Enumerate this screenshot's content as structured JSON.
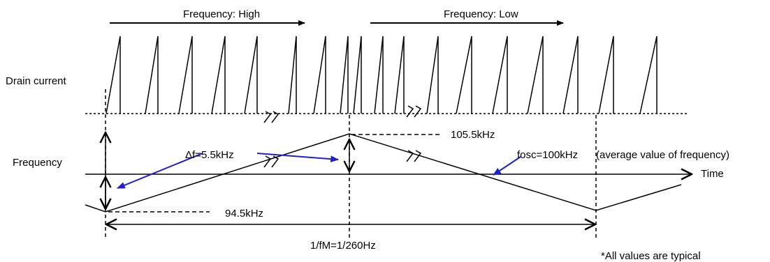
{
  "labels": {
    "freq_high": "Frequency: High",
    "freq_low": "Frequency: Low",
    "drain_current": "Drain current",
    "frequency": "Frequency",
    "time": "Time",
    "delta_f": "Δf=5.5kHz",
    "f_max": "105.5kHz",
    "f_min": "94.5kHz",
    "fosc": "fosc=100kHz",
    "fosc_note": "(average value of frequency)",
    "period": "1/fM=1/260Hz",
    "note": "*All values are typical"
  },
  "colors": {
    "line": "#000000",
    "annotation_arrow": "#1f1fd6"
  }
}
